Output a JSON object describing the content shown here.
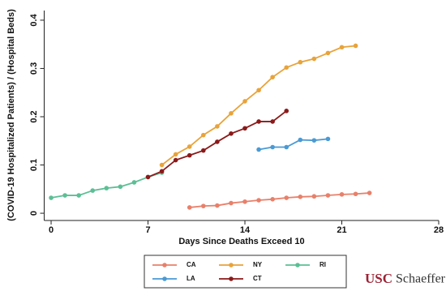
{
  "chart_data": {
    "type": "line",
    "ylabel": "(COVID-19 Hospitalized Patients) / (Hospital Beds)",
    "xlabel": "Days Since Deaths Exceed 10",
    "xlim": [
      -0.5,
      28
    ],
    "xticks": [
      0,
      7,
      14,
      21,
      28
    ],
    "ylim": [
      -0.015,
      0.42
    ],
    "yticks": [
      0,
      0.1,
      0.2,
      0.3,
      0.4
    ],
    "grid": false,
    "series": [
      {
        "name": "CA",
        "color": "#e8806a",
        "x": [
          10,
          11,
          12,
          13,
          14,
          15,
          16,
          17,
          18,
          19,
          20,
          21,
          22,
          23
        ],
        "values": [
          0.012,
          0.015,
          0.016,
          0.021,
          0.024,
          0.027,
          0.029,
          0.032,
          0.034,
          0.035,
          0.037,
          0.039,
          0.04,
          0.042
        ]
      },
      {
        "name": "NY",
        "color": "#e8a33a",
        "x": [
          8,
          9,
          10,
          11,
          12,
          13,
          14,
          15,
          16,
          17,
          18,
          19,
          20,
          21,
          22
        ],
        "values": [
          0.1,
          0.122,
          0.138,
          0.162,
          0.18,
          0.207,
          0.232,
          0.255,
          0.282,
          0.302,
          0.313,
          0.32,
          0.332,
          0.344,
          0.347
        ]
      },
      {
        "name": "RI",
        "color": "#5cbf95",
        "x": [
          0,
          1,
          2,
          3,
          4,
          5,
          6,
          7,
          8
        ],
        "values": [
          0.032,
          0.037,
          0.037,
          0.047,
          0.052,
          0.055,
          0.064,
          0.075,
          0.084
        ]
      },
      {
        "name": "LA",
        "color": "#4a9ad4",
        "x": [
          15,
          16,
          17,
          18,
          19,
          20
        ],
        "values": [
          0.132,
          0.137,
          0.137,
          0.152,
          0.151,
          0.154
        ]
      },
      {
        "name": "CT",
        "color": "#8b1a1a",
        "x": [
          7,
          8,
          9,
          10,
          11,
          12,
          13,
          14,
          15,
          16,
          17
        ],
        "values": [
          0.075,
          0.087,
          0.11,
          0.12,
          0.13,
          0.148,
          0.165,
          0.176,
          0.19,
          0.19,
          0.212
        ]
      }
    ]
  },
  "logo": {
    "brand": "USC",
    "name": "Schaeffer"
  }
}
